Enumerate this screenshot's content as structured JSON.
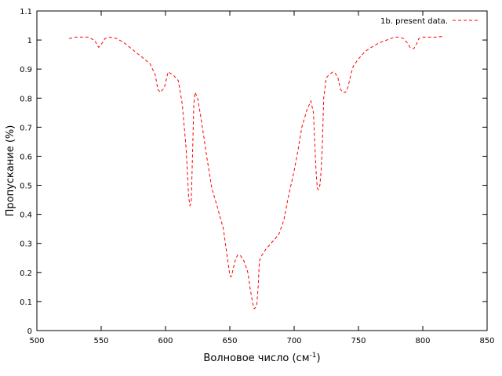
{
  "chart_data": {
    "type": "line",
    "xlabel": "Волновое число (см",
    "xlabel_sup": "-1",
    "xlabel_close": ")",
    "ylabel": "Пропускание (%)",
    "xlim": [
      500,
      850
    ],
    "ylim": [
      0,
      1.1
    ],
    "x_ticks": [
      500,
      550,
      600,
      650,
      700,
      750,
      800,
      850
    ],
    "y_ticks": [
      0,
      0.1,
      0.2,
      0.3,
      0.4,
      0.5,
      0.6,
      0.7,
      0.8,
      0.9,
      1,
      1.1
    ],
    "grid": false,
    "legend_position": "top-right",
    "series": [
      {
        "name": "1b. present data.",
        "color": "#ff0000",
        "style": "dashed",
        "x": [
          525,
          530,
          540,
          545,
          548,
          550,
          553,
          557,
          562,
          568,
          575,
          582,
          588,
          592,
          594,
          596,
          599,
          602,
          606,
          610,
          613,
          616,
          618,
          619,
          620,
          621,
          622,
          623,
          625,
          628,
          632,
          636,
          640,
          645,
          650,
          651,
          652,
          654,
          656,
          658,
          661,
          664,
          666,
          668,
          669,
          670,
          671,
          672,
          673,
          675,
          678,
          682,
          688,
          692,
          695,
          700,
          703,
          706,
          710,
          713,
          715,
          716,
          717,
          718,
          719,
          720,
          721,
          722,
          723,
          725,
          727,
          730,
          732,
          734,
          736,
          738,
          740,
          742,
          744,
          746,
          750,
          755,
          760,
          766,
          772,
          778,
          782,
          785,
          788,
          790,
          793,
          795,
          797,
          800,
          805,
          810,
          815
        ],
        "y": [
          1.005,
          1.01,
          1.01,
          0.998,
          0.975,
          0.985,
          1.005,
          1.01,
          1.005,
          0.99,
          0.965,
          0.94,
          0.918,
          0.88,
          0.83,
          0.82,
          0.835,
          0.89,
          0.88,
          0.86,
          0.78,
          0.63,
          0.46,
          0.43,
          0.44,
          0.6,
          0.78,
          0.82,
          0.8,
          0.72,
          0.6,
          0.49,
          0.43,
          0.35,
          0.19,
          0.185,
          0.2,
          0.24,
          0.26,
          0.26,
          0.24,
          0.2,
          0.14,
          0.09,
          0.075,
          0.08,
          0.09,
          0.15,
          0.24,
          0.26,
          0.28,
          0.3,
          0.33,
          0.38,
          0.45,
          0.55,
          0.62,
          0.7,
          0.76,
          0.79,
          0.75,
          0.65,
          0.55,
          0.49,
          0.485,
          0.5,
          0.55,
          0.65,
          0.8,
          0.87,
          0.88,
          0.89,
          0.885,
          0.87,
          0.83,
          0.82,
          0.82,
          0.84,
          0.88,
          0.91,
          0.935,
          0.96,
          0.975,
          0.99,
          1.0,
          1.01,
          1.01,
          1.005,
          0.99,
          0.975,
          0.97,
          0.985,
          1.005,
          1.01,
          1.01,
          1.01,
          1.012
        ]
      }
    ]
  }
}
